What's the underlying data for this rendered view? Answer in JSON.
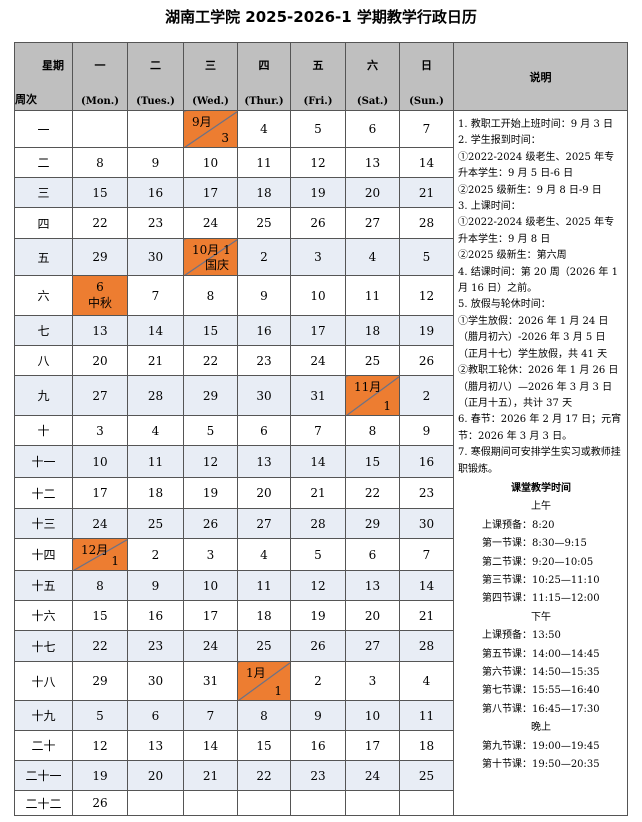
{
  "title": "湖南工学院 2025-2026-1 学期教学行政日历",
  "header": {
    "corner_top": "星期",
    "corner_bottom": "周次",
    "days": [
      {
        "cn": "一",
        "en": "(Mon.)"
      },
      {
        "cn": "二",
        "en": "(Tues.)"
      },
      {
        "cn": "三",
        "en": "(Wed.)"
      },
      {
        "cn": "四",
        "en": "(Thur.)"
      },
      {
        "cn": "五",
        "en": "(Fri.)"
      },
      {
        "cn": "六",
        "en": "(Sat.)"
      },
      {
        "cn": "日",
        "en": "(Sun.)"
      }
    ],
    "notes_title": "说明"
  },
  "weeks": [
    {
      "week": "一",
      "days": [
        null,
        null,
        {
          "top": "9月",
          "bottom": "3"
        },
        4,
        5,
        6,
        7
      ]
    },
    {
      "week": "二",
      "days": [
        8,
        9,
        10,
        11,
        12,
        13,
        14
      ]
    },
    {
      "week": "三",
      "days": [
        15,
        16,
        17,
        18,
        19,
        20,
        21
      ]
    },
    {
      "week": "四",
      "days": [
        22,
        23,
        24,
        25,
        26,
        27,
        28
      ]
    },
    {
      "week": "五",
      "days": [
        29,
        30,
        {
          "top": "10月 1",
          "bottom": "国庆"
        },
        2,
        3,
        4,
        5
      ]
    },
    {
      "week": "六",
      "days": [
        {
          "line1": "6",
          "line2": "中秋"
        },
        7,
        8,
        9,
        10,
        11,
        12
      ]
    },
    {
      "week": "七",
      "days": [
        13,
        14,
        15,
        16,
        17,
        18,
        19
      ]
    },
    {
      "week": "八",
      "days": [
        20,
        21,
        22,
        23,
        24,
        25,
        26
      ]
    },
    {
      "week": "九",
      "days": [
        27,
        28,
        29,
        30,
        31,
        {
          "top": "11月",
          "bottom": "1"
        },
        2
      ]
    },
    {
      "week": "十",
      "days": [
        3,
        4,
        5,
        6,
        7,
        8,
        9
      ]
    },
    {
      "week": "十一",
      "days": [
        10,
        11,
        12,
        13,
        14,
        15,
        16
      ]
    },
    {
      "week": "十二",
      "days": [
        17,
        18,
        19,
        20,
        21,
        22,
        23
      ]
    },
    {
      "week": "十三",
      "days": [
        24,
        25,
        26,
        27,
        28,
        29,
        30
      ]
    },
    {
      "week": "十四",
      "days": [
        {
          "top": "12月",
          "bottom": "1"
        },
        2,
        3,
        4,
        5,
        6,
        7
      ]
    },
    {
      "week": "十五",
      "days": [
        8,
        9,
        10,
        11,
        12,
        13,
        14
      ]
    },
    {
      "week": "十六",
      "days": [
        15,
        16,
        17,
        18,
        19,
        20,
        21
      ]
    },
    {
      "week": "十七",
      "days": [
        22,
        23,
        24,
        25,
        26,
        27,
        28
      ]
    },
    {
      "week": "十八",
      "days": [
        29,
        30,
        31,
        {
          "top": "1月",
          "bottom": "1"
        },
        2,
        3,
        4
      ]
    },
    {
      "week": "十九",
      "days": [
        5,
        6,
        7,
        8,
        9,
        10,
        11
      ]
    },
    {
      "week": "二十",
      "days": [
        12,
        13,
        14,
        15,
        16,
        17,
        18
      ]
    },
    {
      "week": "二十一",
      "days": [
        19,
        20,
        21,
        22,
        23,
        24,
        25
      ]
    },
    {
      "week": "二十二",
      "days": [
        26,
        null,
        null,
        null,
        null,
        null,
        null
      ]
    }
  ],
  "notes": [
    "1. 教职工开始上班时间：9 月 3 日",
    "2. 学生报到时间：",
    "①2022-2024 级老生、2025 年专升本学生：9 月 5 日-6 日",
    "②2025 级新生：9 月 8 日-9 日",
    "3. 上课时间：",
    "①2022-2024 级老生、2025 年专升本学生：9 月 8 日",
    "②2025 级新生：第六周",
    "4. 结课时间：第 20 周（2026 年 1 月 16 日）之前。",
    "5. 放假与轮休时间：",
    "①学生放假：2026 年 1 月 24 日（腊月初六）-2026 年 3 月 5 日（正月十七）学生放假，共 41 天",
    "②教职工轮休：2026 年 1 月 26 日（腊月初八）—2026 年 3 月 3 日（正月十五），共计 37 天",
    "6. 春节：2026 年 2 月 17 日；元宵节：2026 年 3 月 3 日。",
    "7. 寒假期间可安排学生实习或教师挂职锻炼。"
  ],
  "schedule": {
    "title": "课堂教学时间",
    "sections": [
      {
        "name": "上午",
        "items": [
          "上课预备：8:20",
          "第一节课：8:30—9:15",
          "第二节课：9:20—10:05",
          "第三节课：10:25—11:10",
          "第四节课：11:15—12:00"
        ]
      },
      {
        "name": "下午",
        "items": [
          "上课预备：13:50",
          "第五节课：14:00—14:45",
          "第六节课：14:50—15:35",
          "第七节课：15:55—16:40",
          "第八节课：16:45—17:30"
        ]
      },
      {
        "name": "晚上",
        "items": [
          "第九节课：19:00—19:45",
          "第十节课：19:50—20:35"
        ]
      }
    ]
  }
}
